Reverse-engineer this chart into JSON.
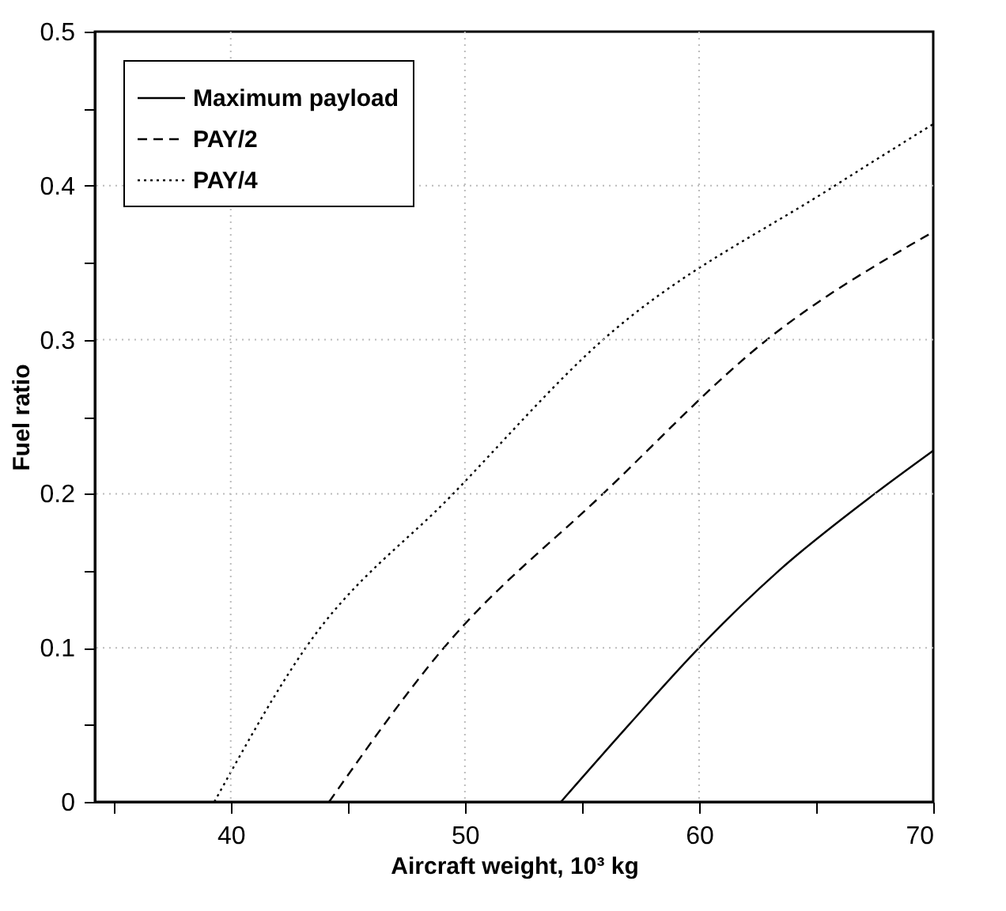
{
  "chart_data": {
    "type": "line",
    "xlabel": "Aircraft weight, 10³ kg",
    "ylabel": "Fuel ratio",
    "xlim": [
      34.2,
      70
    ],
    "ylim": [
      0,
      0.5
    ],
    "xticks": [
      {
        "value": 35,
        "label": null
      },
      40,
      {
        "value": 45,
        "label": null
      },
      50,
      {
        "value": 55,
        "label": null
      },
      60,
      {
        "value": 65,
        "label": null
      },
      70
    ],
    "yticks": [
      0,
      {
        "value": 0.05,
        "label": null
      },
      0.1,
      {
        "value": 0.15,
        "label": null
      },
      0.2,
      {
        "value": 0.25,
        "label": null
      },
      0.3,
      {
        "value": 0.35,
        "label": null
      },
      0.4,
      {
        "value": 0.45,
        "label": null
      },
      0.5
    ],
    "grid": true,
    "legend": "top left",
    "series": [
      {
        "name": "Maximum payload",
        "color": "#000000",
        "line_style": "solid",
        "x": [
          54.1,
          57.0,
          60,
          63.4,
          67.5,
          70
        ],
        "values": [
          0,
          0.05,
          0.1,
          0.15,
          0.2,
          0.228
        ]
      },
      {
        "name": "PAY/2",
        "color": "#000000",
        "line_style": "dashed",
        "x": [
          44.2,
          49.1,
          55.9,
          62.9,
          70
        ],
        "values": [
          0,
          0.1,
          0.2,
          0.3,
          0.37
        ]
      },
      {
        "name": "PAY/4",
        "color": "#000000",
        "line_style": "dotted",
        "x": [
          39.3,
          43.2,
          49.5,
          55.9,
          65.8,
          70
        ],
        "values": [
          0,
          0.1,
          0.2,
          0.3,
          0.4,
          0.44
        ]
      }
    ]
  }
}
